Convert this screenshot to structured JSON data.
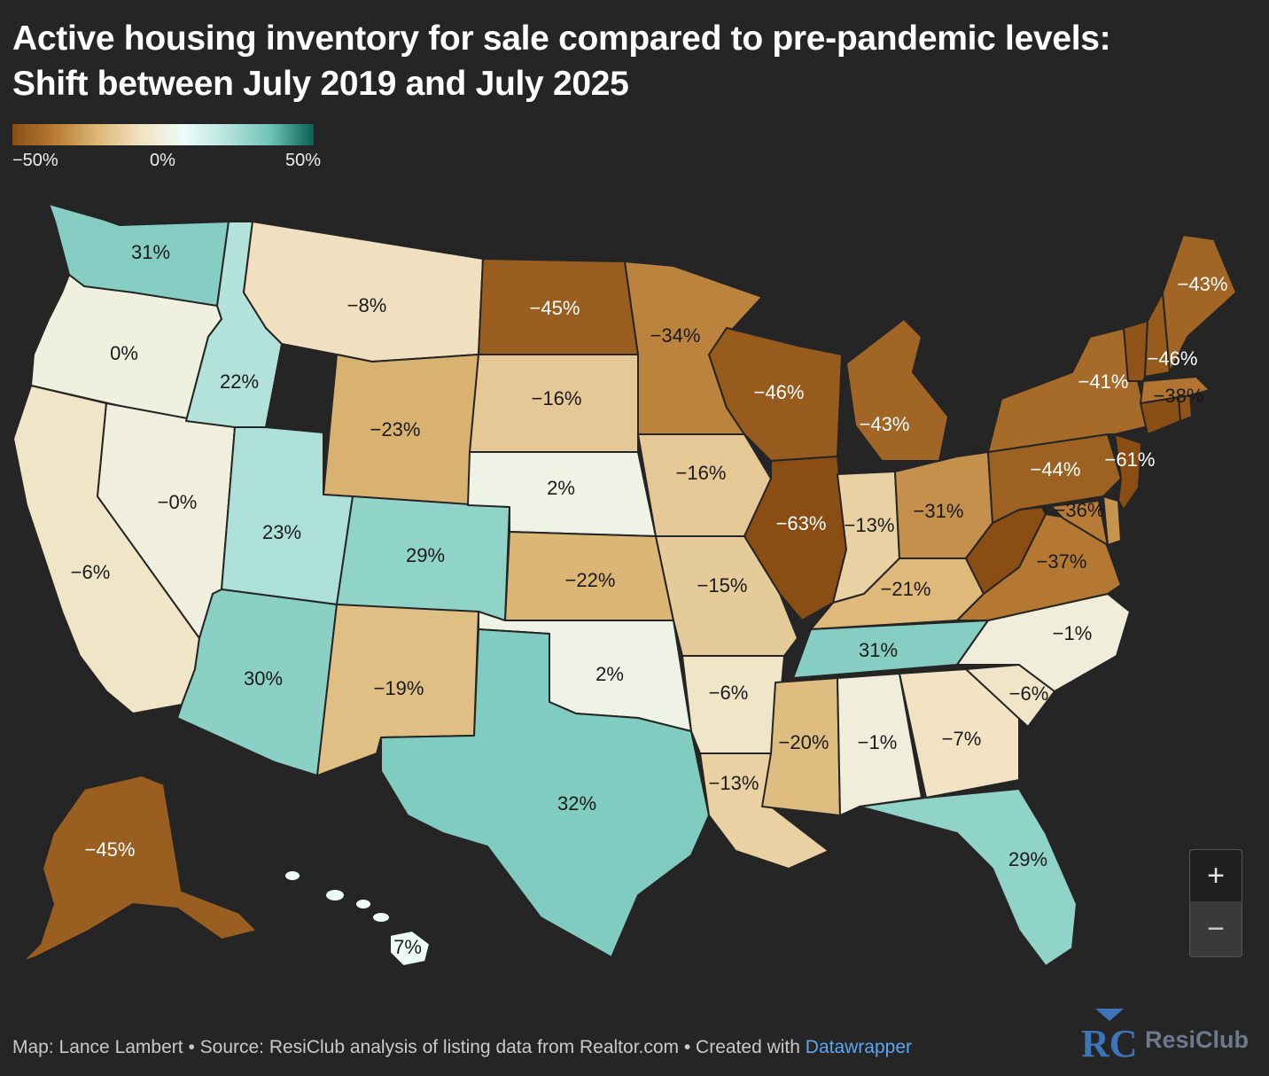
{
  "title_line1": "Active housing inventory for sale compared to pre-pandemic levels:",
  "title_line2": "Shift between July 2019 and July 2025",
  "legend": {
    "min_label": "−50%",
    "mid_label": "0%",
    "max_label": "50%",
    "colors": [
      "#8a4e14",
      "#b87c36",
      "#ddb878",
      "#f1e3c3",
      "#eefcf9",
      "#b5e3dc",
      "#6fc4b6",
      "#0a5e52"
    ]
  },
  "chart_data": {
    "type": "choropleth",
    "title": "Active housing inventory for sale compared to pre-pandemic levels: Shift between July 2019 and July 2025",
    "unit": "%",
    "scale_range": [
      -50,
      50
    ],
    "states": [
      {
        "state": "WA",
        "value": 31,
        "label": "31%"
      },
      {
        "state": "OR",
        "value": 0,
        "label": "0%"
      },
      {
        "state": "CA",
        "value": -6,
        "label": "−6%"
      },
      {
        "state": "NV",
        "value": -0.1,
        "label": "−0%"
      },
      {
        "state": "ID",
        "value": 22,
        "label": "22%"
      },
      {
        "state": "MT",
        "value": -8,
        "label": "−8%"
      },
      {
        "state": "WY",
        "value": -23,
        "label": "−23%"
      },
      {
        "state": "UT",
        "value": 23,
        "label": "23%"
      },
      {
        "state": "AZ",
        "value": 30,
        "label": "30%"
      },
      {
        "state": "CO",
        "value": 29,
        "label": "29%"
      },
      {
        "state": "NM",
        "value": -19,
        "label": "−19%"
      },
      {
        "state": "ND",
        "value": -45,
        "label": "−45%"
      },
      {
        "state": "SD",
        "value": -16,
        "label": "−16%"
      },
      {
        "state": "NE",
        "value": 2,
        "label": "2%"
      },
      {
        "state": "KS",
        "value": -22,
        "label": "−22%"
      },
      {
        "state": "OK",
        "value": 2,
        "label": "2%"
      },
      {
        "state": "TX",
        "value": 32,
        "label": "32%"
      },
      {
        "state": "MN",
        "value": -34,
        "label": "−34%"
      },
      {
        "state": "IA",
        "value": -16,
        "label": "−16%"
      },
      {
        "state": "MO",
        "value": -15,
        "label": "−15%"
      },
      {
        "state": "AR",
        "value": -6,
        "label": "−6%"
      },
      {
        "state": "LA",
        "value": -13,
        "label": "−13%"
      },
      {
        "state": "WI",
        "value": -46,
        "label": "−46%"
      },
      {
        "state": "IL",
        "value": -63,
        "label": "−63%"
      },
      {
        "state": "MI",
        "value": -43,
        "label": "−43%"
      },
      {
        "state": "IN",
        "value": -13,
        "label": "−13%"
      },
      {
        "state": "OH",
        "value": -31,
        "label": "−31%"
      },
      {
        "state": "KY",
        "value": -21,
        "label": "−21%"
      },
      {
        "state": "TN",
        "value": 31,
        "label": "31%"
      },
      {
        "state": "MS",
        "value": -20,
        "label": "−20%"
      },
      {
        "state": "AL",
        "value": -1,
        "label": "−1%"
      },
      {
        "state": "GA",
        "value": -7,
        "label": "−7%"
      },
      {
        "state": "FL",
        "value": 29,
        "label": "29%"
      },
      {
        "state": "SC",
        "value": -6,
        "label": "−6%"
      },
      {
        "state": "NC",
        "value": -1,
        "label": "−1%"
      },
      {
        "state": "VA",
        "value": -37,
        "label": "−37%"
      },
      {
        "state": "WV",
        "value": -50,
        "label": ""
      },
      {
        "state": "MD",
        "value": -36,
        "label": "−36%"
      },
      {
        "state": "DE",
        "value": -30,
        "label": ""
      },
      {
        "state": "PA",
        "value": -44,
        "label": "−44%"
      },
      {
        "state": "NJ",
        "value": -61,
        "label": "−61%"
      },
      {
        "state": "NY",
        "value": -41,
        "label": "−41%"
      },
      {
        "state": "CT",
        "value": -50,
        "label": ""
      },
      {
        "state": "RI",
        "value": -48,
        "label": ""
      },
      {
        "state": "MA",
        "value": -38,
        "label": "−38%"
      },
      {
        "state": "VT",
        "value": -48,
        "label": ""
      },
      {
        "state": "NH",
        "value": -46,
        "label": "−46%"
      },
      {
        "state": "ME",
        "value": -43,
        "label": "−43%"
      },
      {
        "state": "AK",
        "value": -45,
        "label": "−45%"
      },
      {
        "state": "HI",
        "value": 7,
        "label": "7%"
      }
    ]
  },
  "zoom": {
    "in_label": "+",
    "out_label": "−"
  },
  "footer": {
    "text": "Map: Lance Lambert • Source: ResiClub analysis of listing data from Realtor.com • Created with ",
    "link": "Datawrapper"
  },
  "logo": {
    "text": "ResiClub",
    "mark_text": "RC"
  }
}
